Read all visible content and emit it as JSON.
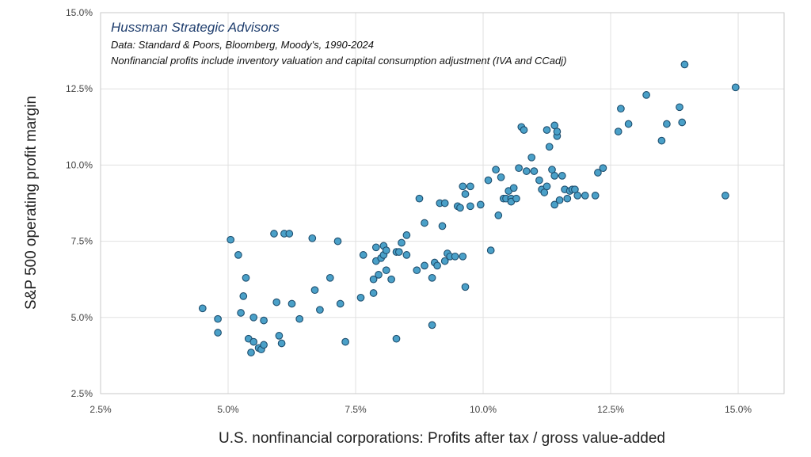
{
  "chart_data": {
    "type": "scatter",
    "title": "",
    "annotations": {
      "title": "Hussman Strategic Advisors",
      "lines": [
        "Data: Standard & Poors, Bloomberg, Moody's, 1990-2024",
        "Nonfinancial profits include inventory valuation and capital consumption adjustment (IVA and CCadj)"
      ]
    },
    "xlabel": "U.S. nonfinancial corporations: Profits after tax / gross value-added",
    "ylabel": "S&P 500 operating profit margin",
    "xlim": [
      2.5,
      15.9
    ],
    "ylim": [
      2.5,
      15.0
    ],
    "x_ticks": [
      2.5,
      5.0,
      7.5,
      10.0,
      12.5,
      15.0
    ],
    "y_ticks": [
      2.5,
      5.0,
      7.5,
      10.0,
      12.5,
      15.0
    ],
    "x_tick_labels": [
      "2.5%",
      "5.0%",
      "7.5%",
      "10.0%",
      "12.5%",
      "15.0%"
    ],
    "y_tick_labels": [
      "2.5%",
      "5.0%",
      "7.5%",
      "10.0%",
      "12.5%",
      "15.0%"
    ],
    "grid": true,
    "marker_color": "#4aa0c8",
    "marker_edge_color": "#1e4e6e",
    "points": [
      [
        4.5,
        5.3
      ],
      [
        4.8,
        4.95
      ],
      [
        4.8,
        4.5
      ],
      [
        5.05,
        7.55
      ],
      [
        5.2,
        7.05
      ],
      [
        5.25,
        5.15
      ],
      [
        5.3,
        5.7
      ],
      [
        5.35,
        6.3
      ],
      [
        5.4,
        4.3
      ],
      [
        5.45,
        3.85
      ],
      [
        5.5,
        4.2
      ],
      [
        5.5,
        5.0
      ],
      [
        5.6,
        4.0
      ],
      [
        5.65,
        3.95
      ],
      [
        5.7,
        4.9
      ],
      [
        5.7,
        4.1
      ],
      [
        5.9,
        7.75
      ],
      [
        5.95,
        5.5
      ],
      [
        6.0,
        4.4
      ],
      [
        6.05,
        4.15
      ],
      [
        6.1,
        7.75
      ],
      [
        6.2,
        7.75
      ],
      [
        6.25,
        5.45
      ],
      [
        6.4,
        4.95
      ],
      [
        6.65,
        7.6
      ],
      [
        6.7,
        5.9
      ],
      [
        6.8,
        5.25
      ],
      [
        7.0,
        6.3
      ],
      [
        7.15,
        7.5
      ],
      [
        7.2,
        5.45
      ],
      [
        7.3,
        4.2
      ],
      [
        7.6,
        5.65
      ],
      [
        7.65,
        7.05
      ],
      [
        7.85,
        5.8
      ],
      [
        7.85,
        6.25
      ],
      [
        7.9,
        7.3
      ],
      [
        7.9,
        6.85
      ],
      [
        7.95,
        6.4
      ],
      [
        8.0,
        6.95
      ],
      [
        8.05,
        7.35
      ],
      [
        8.05,
        7.05
      ],
      [
        8.1,
        6.55
      ],
      [
        8.1,
        7.2
      ],
      [
        8.2,
        6.25
      ],
      [
        8.3,
        7.15
      ],
      [
        8.35,
        7.15
      ],
      [
        8.3,
        4.3
      ],
      [
        8.4,
        7.45
      ],
      [
        8.5,
        7.05
      ],
      [
        8.5,
        7.7
      ],
      [
        8.7,
        6.55
      ],
      [
        8.75,
        8.9
      ],
      [
        8.85,
        8.1
      ],
      [
        8.85,
        6.7
      ],
      [
        9.0,
        6.3
      ],
      [
        9.0,
        4.75
      ],
      [
        9.05,
        6.8
      ],
      [
        9.1,
        6.7
      ],
      [
        9.15,
        8.75
      ],
      [
        9.2,
        8.0
      ],
      [
        9.25,
        6.85
      ],
      [
        9.25,
        8.75
      ],
      [
        9.3,
        7.1
      ],
      [
        9.35,
        7.0
      ],
      [
        9.45,
        7.0
      ],
      [
        9.5,
        8.65
      ],
      [
        9.55,
        8.6
      ],
      [
        9.6,
        7.0
      ],
      [
        9.6,
        9.3
      ],
      [
        9.65,
        6.0
      ],
      [
        9.65,
        9.05
      ],
      [
        9.75,
        9.3
      ],
      [
        9.75,
        8.65
      ],
      [
        9.95,
        8.7
      ],
      [
        10.1,
        9.5
      ],
      [
        10.15,
        7.2
      ],
      [
        10.25,
        9.85
      ],
      [
        10.3,
        8.35
      ],
      [
        10.35,
        9.6
      ],
      [
        10.4,
        8.9
      ],
      [
        10.45,
        8.9
      ],
      [
        10.5,
        9.15
      ],
      [
        10.55,
        8.9
      ],
      [
        10.55,
        8.8
      ],
      [
        10.6,
        9.25
      ],
      [
        10.65,
        8.9
      ],
      [
        10.7,
        9.9
      ],
      [
        10.75,
        11.25
      ],
      [
        10.8,
        11.15
      ],
      [
        10.85,
        9.8
      ],
      [
        10.95,
        10.25
      ],
      [
        11.0,
        9.8
      ],
      [
        11.1,
        9.5
      ],
      [
        11.15,
        9.2
      ],
      [
        11.2,
        9.1
      ],
      [
        11.25,
        9.3
      ],
      [
        11.25,
        11.15
      ],
      [
        11.3,
        10.6
      ],
      [
        11.35,
        9.85
      ],
      [
        11.4,
        11.3
      ],
      [
        11.4,
        9.65
      ],
      [
        11.4,
        8.7
      ],
      [
        11.45,
        10.95
      ],
      [
        11.45,
        11.1
      ],
      [
        11.5,
        8.85
      ],
      [
        11.55,
        9.65
      ],
      [
        11.6,
        9.2
      ],
      [
        11.65,
        8.9
      ],
      [
        11.7,
        9.15
      ],
      [
        11.75,
        9.2
      ],
      [
        11.8,
        9.2
      ],
      [
        11.85,
        9.0
      ],
      [
        12.0,
        9.0
      ],
      [
        12.2,
        9.0
      ],
      [
        12.25,
        9.75
      ],
      [
        12.35,
        9.9
      ],
      [
        12.65,
        11.1
      ],
      [
        12.7,
        11.85
      ],
      [
        12.85,
        11.35
      ],
      [
        13.2,
        12.3
      ],
      [
        13.5,
        10.8
      ],
      [
        13.6,
        11.35
      ],
      [
        13.85,
        11.9
      ],
      [
        13.9,
        11.4
      ],
      [
        13.95,
        13.3
      ],
      [
        14.75,
        9.0
      ],
      [
        14.95,
        12.55
      ]
    ]
  }
}
